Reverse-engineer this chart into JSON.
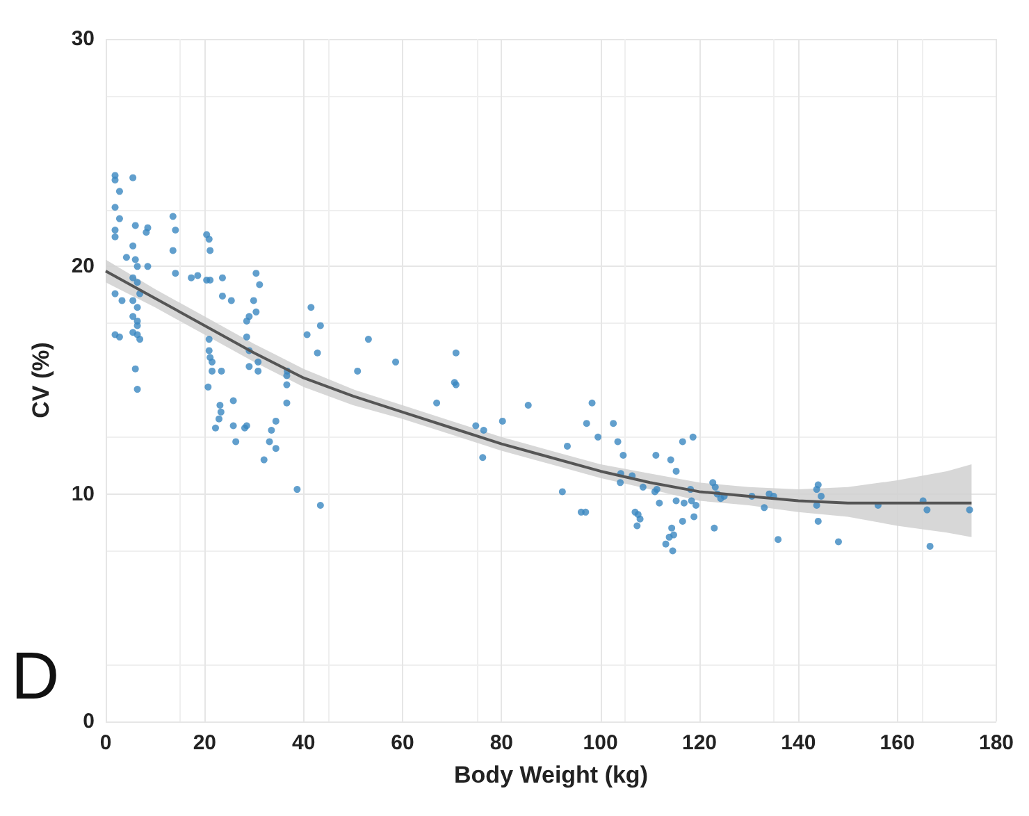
{
  "chart_data": {
    "type": "scatter",
    "xlabel": "Body Weight (kg)",
    "ylabel": "CV (%)",
    "xlim": [
      0,
      180
    ],
    "xticks": [
      0,
      20,
      40,
      60,
      80,
      100,
      120,
      140,
      160,
      180
    ],
    "ylim": [
      0,
      30
    ],
    "yticks": [
      0,
      10,
      20,
      30
    ],
    "grid": true,
    "annotations": [
      "D"
    ],
    "series": [
      {
        "marker": "circle",
        "color": "#3a87c0",
        "x": [
          1.9,
          1.9,
          5.5,
          2.8,
          1.9,
          2.8,
          1.9,
          1.9,
          6.0,
          8.5,
          8.2,
          13.6,
          14.1,
          13.6,
          14.1,
          4.2,
          5.5,
          6.0,
          6.4,
          8.5,
          5.5,
          6.4,
          1.9,
          3.3,
          5.5,
          6.9,
          6.4,
          5.5,
          6.4,
          6.4,
          1.9,
          2.8,
          5.5,
          6.4,
          6.9,
          6.0,
          6.4,
          20.4,
          20.9,
          21.1,
          17.3,
          18.6,
          20.4,
          21.1,
          23.6,
          23.6,
          25.4,
          30.4,
          31.1,
          29.9,
          30.4,
          29.0,
          28.5,
          28.5,
          29.0,
          29.0,
          30.8,
          30.8,
          20.9,
          20.9,
          21.1,
          21.5,
          21.5,
          20.7,
          23.4,
          25.8,
          23.1,
          23.3,
          22.9,
          22.2,
          25.8,
          26.3,
          28.5,
          28.1,
          34.4,
          33.5,
          33.1,
          34.4,
          32.0,
          36.7,
          36.6,
          36.6,
          36.6,
          41.5,
          43.4,
          40.7,
          42.8,
          50.9,
          38.7,
          43.4,
          53.1,
          58.6,
          66.9,
          70.8,
          70.5,
          70.8,
          74.8,
          76.4,
          76.2,
          80.2,
          85.4,
          93.3,
          92.3,
          96.1,
          97.0,
          97.2,
          98.3,
          99.5,
          102.6,
          103.5,
          104.6,
          104.1,
          104.0,
          106.4,
          108.6,
          111.2,
          111.4,
          111.0,
          111.9,
          114.2,
          115.3,
          116.6,
          115.3,
          116.6,
          107.0,
          107.6,
          108.0,
          107.4,
          114.4,
          114.8,
          113.9,
          113.2,
          114.6,
          118.7,
          116.9,
          118.4,
          119.3,
          118.2,
          118.9,
          122.7,
          123.2,
          123.6,
          124.3,
          125.0,
          123.0,
          130.6,
          134.1,
          135.0,
          133.1,
          135.9,
          144.0,
          143.7,
          144.6,
          143.7,
          144.0,
          148.1,
          156.1,
          165.2,
          166.0,
          166.6,
          174.6
        ],
        "values": [
          24.0,
          23.8,
          23.9,
          23.3,
          22.6,
          22.1,
          21.6,
          21.3,
          21.8,
          21.7,
          21.5,
          22.2,
          21.6,
          20.7,
          19.7,
          20.4,
          20.9,
          20.3,
          20.0,
          20.0,
          19.5,
          19.3,
          18.8,
          18.5,
          18.5,
          18.8,
          18.2,
          17.8,
          17.6,
          17.4,
          17.0,
          16.9,
          17.1,
          17.0,
          16.8,
          15.5,
          14.6,
          21.4,
          21.2,
          20.7,
          19.5,
          19.6,
          19.4,
          19.4,
          19.5,
          18.7,
          18.5,
          19.7,
          19.2,
          18.5,
          18.0,
          17.8,
          17.6,
          16.9,
          16.3,
          15.6,
          15.8,
          15.4,
          16.8,
          16.3,
          16.0,
          15.8,
          15.4,
          14.7,
          15.4,
          14.1,
          13.9,
          13.6,
          13.3,
          12.9,
          13.0,
          12.3,
          13.0,
          12.9,
          13.2,
          12.8,
          12.3,
          12.0,
          11.5,
          15.4,
          15.2,
          14.8,
          14.0,
          18.2,
          17.4,
          17.0,
          16.2,
          15.4,
          10.2,
          9.5,
          16.8,
          15.8,
          14.0,
          16.2,
          14.9,
          14.8,
          13.0,
          12.8,
          11.6,
          13.2,
          13.9,
          12.1,
          10.1,
          9.2,
          9.2,
          13.1,
          14.0,
          12.5,
          13.1,
          12.3,
          11.7,
          10.9,
          10.5,
          10.8,
          10.3,
          11.7,
          10.2,
          10.1,
          9.6,
          11.5,
          11.0,
          12.3,
          9.7,
          8.8,
          9.2,
          9.1,
          8.9,
          8.6,
          8.5,
          8.2,
          8.1,
          7.8,
          7.5,
          12.5,
          9.6,
          9.7,
          9.5,
          10.2,
          9.0,
          10.5,
          10.3,
          10.0,
          9.8,
          9.9,
          8.5,
          9.9,
          10.0,
          9.9,
          9.4,
          8.0,
          10.4,
          10.2,
          9.9,
          9.5,
          8.8,
          7.9,
          9.5,
          9.7,
          9.3,
          7.7,
          9.3
        ]
      },
      {
        "type": "line",
        "color": "#555555",
        "x": [
          0,
          10,
          20,
          30,
          40,
          50,
          60,
          70,
          80,
          90,
          100,
          110,
          120,
          130,
          140,
          150,
          160,
          170,
          175
        ],
        "values": [
          19.8,
          18.6,
          17.4,
          16.2,
          15.1,
          14.3,
          13.6,
          12.9,
          12.2,
          11.6,
          11.0,
          10.5,
          10.1,
          9.9,
          9.7,
          9.6,
          9.6,
          9.6,
          9.6
        ],
        "lower": [
          19.3,
          18.2,
          17.0,
          15.8,
          14.7,
          13.9,
          13.3,
          12.6,
          11.9,
          11.3,
          10.7,
          10.2,
          9.7,
          9.5,
          9.2,
          9.0,
          8.6,
          8.3,
          8.1
        ],
        "upper": [
          20.3,
          19.0,
          17.8,
          16.6,
          15.5,
          14.6,
          13.9,
          13.2,
          12.5,
          11.9,
          11.3,
          10.9,
          10.5,
          10.3,
          10.2,
          10.3,
          10.6,
          11.0,
          11.3
        ]
      }
    ]
  }
}
